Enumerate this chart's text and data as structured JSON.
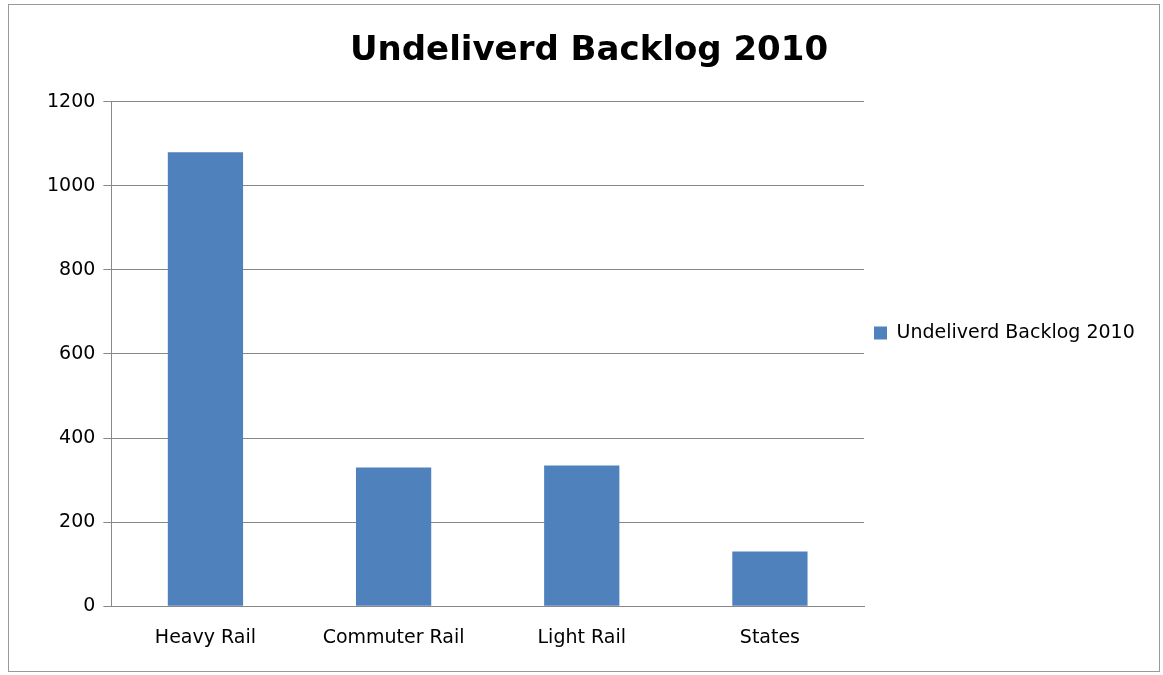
{
  "chart_data": {
    "type": "bar",
    "title": "Undeliverd Backlog 2010",
    "categories": [
      "Heavy Rail",
      "Commuter Rail",
      "Light Rail",
      "States"
    ],
    "series": [
      {
        "name": "Undeliverd Backlog 2010",
        "color": "#4f81bd",
        "values": [
          1080,
          330,
          335,
          130
        ]
      }
    ],
    "ylim": [
      0,
      1200
    ],
    "yticks": [
      0,
      200,
      400,
      600,
      800,
      1000,
      1200
    ],
    "grid": "y",
    "legend": "right"
  }
}
